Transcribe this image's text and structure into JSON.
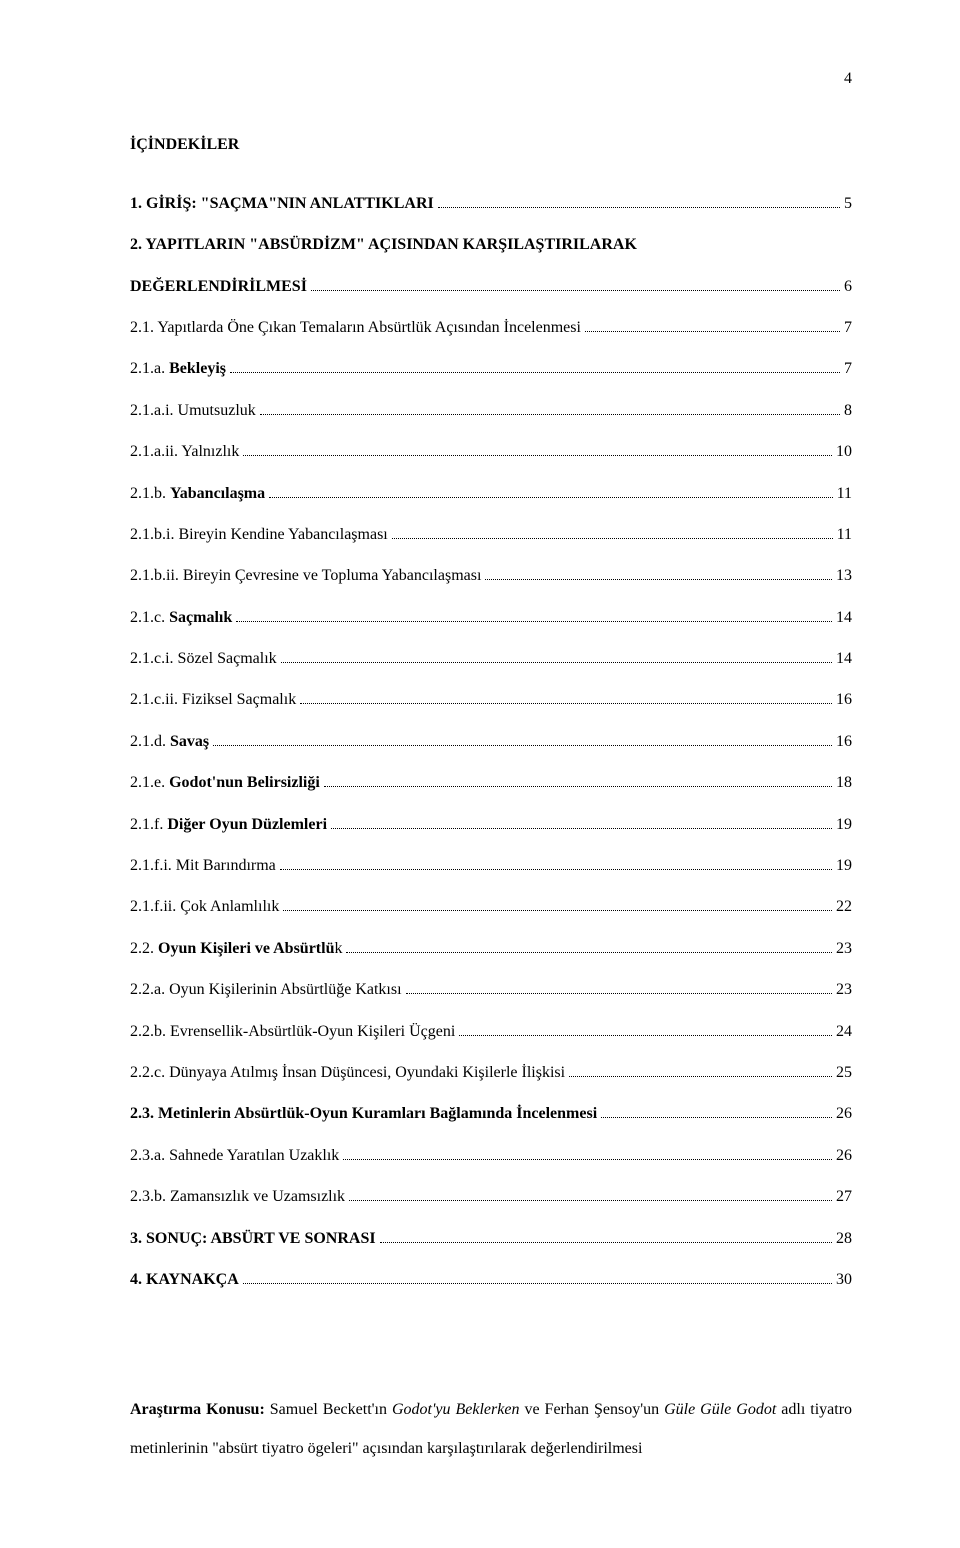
{
  "page_number": "4",
  "toc_title": "İÇİNDEKİLER",
  "toc": [
    {
      "label": "1. GİRİŞ: \"SAÇMA\"NIN ANLATTIKLARI",
      "page": "5",
      "bold": true
    },
    {
      "label": "2. YAPITLARIN \"ABSÜRDİZM\" AÇISINDAN KARŞILAŞTIRILARAK",
      "cont_label": "DEĞERLENDİRİLMESİ",
      "page": "6",
      "bold": true
    },
    {
      "label": "2.1. Yapıtlarda Öne Çıkan Temaların Absürtlük Açısından İncelenmesi",
      "page": "7",
      "bold": false
    },
    {
      "label_pre": "2.1.a. ",
      "label_bold": "Bekleyiş",
      "page": "7",
      "bold": false
    },
    {
      "label": "2.1.a.i. Umutsuzluk",
      "page": "8",
      "bold": false
    },
    {
      "label": "2.1.a.ii. Yalnızlık",
      "page": "10",
      "bold": false
    },
    {
      "label_pre": "2.1.b. ",
      "label_bold": "Yabancılaşma",
      "page": "11",
      "bold": false
    },
    {
      "label": "2.1.b.i. Bireyin Kendine Yabancılaşması",
      "page": "11",
      "bold": false
    },
    {
      "label": "2.1.b.ii. Bireyin Çevresine ve Topluma Yabancılaşması",
      "page": "13",
      "bold": false
    },
    {
      "label_pre": "2.1.c. ",
      "label_bold": "Saçmalık",
      "page": "14",
      "bold": false
    },
    {
      "label": "2.1.c.i. Sözel Saçmalık",
      "page": "14",
      "bold": false
    },
    {
      "label": "2.1.c.ii. Fiziksel Saçmalık",
      "page": "16",
      "bold": false
    },
    {
      "label_pre": "2.1.d. ",
      "label_bold": "Savaş",
      "page": "16",
      "bold": false
    },
    {
      "label_pre": "2.1.e. ",
      "label_bold": "Godot'nun Belirsizliği",
      "page": "18",
      "bold": false
    },
    {
      "label_pre": "2.1.f. ",
      "label_bold": "Diğer Oyun Düzlemleri",
      "page": "19",
      "bold": false
    },
    {
      "label": "2.1.f.i. Mit Barındırma",
      "page": "19",
      "bold": false
    },
    {
      "label": "2.1.f.ii. Çok Anlamlılık",
      "page": "22",
      "bold": false
    },
    {
      "label_pre": "2.2. ",
      "label_bold": "Oyun Kişileri ve Absürtlü",
      "label_post": "k",
      "page": "23",
      "bold": false
    },
    {
      "label": "2.2.a. Oyun Kişilerinin Absürtlüğe Katkısı",
      "page": "23",
      "bold": false
    },
    {
      "label": "2.2.b. Evrensellik-Absürtlük-Oyun Kişileri Üçgeni",
      "page": "24",
      "bold": false
    },
    {
      "label": "2.2.c. Dünyaya Atılmış İnsan Düşüncesi, Oyundaki Kişilerle İlişkisi",
      "page": "25",
      "bold": false
    },
    {
      "label": "2.3. Metinlerin Absürtlük-Oyun Kuramları Bağlamında İncelenmesi",
      "page": "26",
      "bold": true
    },
    {
      "label": "2.3.a. Sahnede Yaratılan Uzaklık",
      "page": "26",
      "bold": false
    },
    {
      "label": "2.3.b. Zamansızlık ve Uzamsızlık",
      "page": "27",
      "bold": false
    },
    {
      "label": "3. SONUÇ: ABSÜRT VE SONRASI",
      "page": "28",
      "bold": true
    },
    {
      "label": "4. KAYNAKÇA",
      "page": "30",
      "bold": true
    }
  ],
  "research": {
    "label": "Araştırma Konusu: ",
    "text_1": "Samuel Beckett'ın ",
    "italic_1": "Godot'yu Beklerken",
    "text_2": " ve Ferhan Şensoy'un ",
    "italic_2": "Güle Güle Godot",
    "text_3": " adlı tiyatro metinlerinin \"absürt tiyatro ögeleri\" açısından karşılaştırılarak değerlendirilmesi"
  }
}
